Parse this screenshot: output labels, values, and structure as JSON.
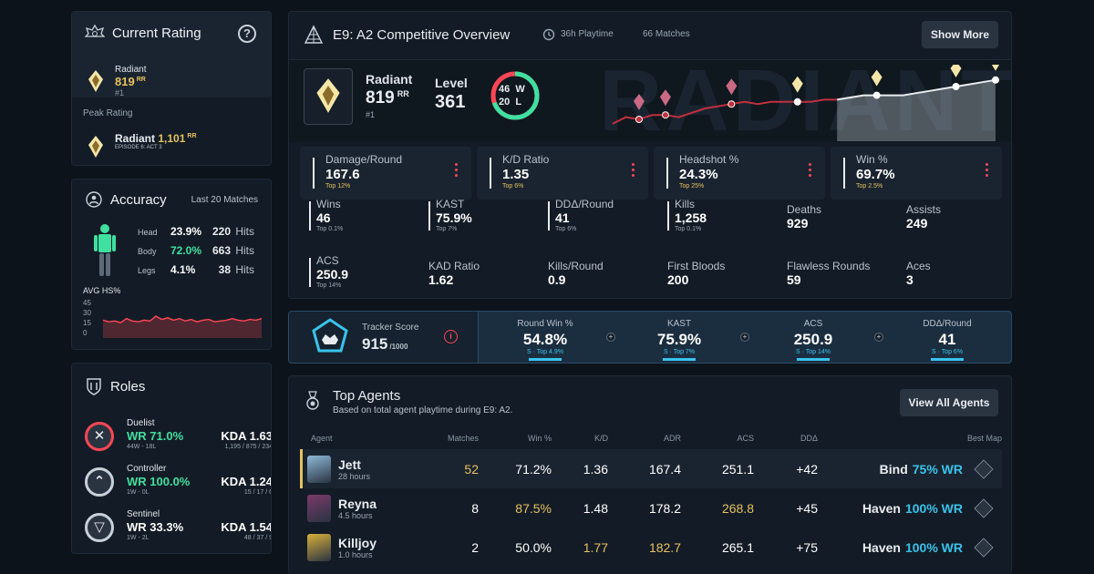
{
  "rating": {
    "title": "Current Rating",
    "rank": "Radiant",
    "rr": "819",
    "rr_unit": "RR",
    "position": "#1",
    "peak_label": "Peak Rating",
    "peak_rank": "Radiant",
    "peak_rr": "1,101",
    "peak_rr_unit": "RR",
    "peak_episode": "EPISODE 6: ACT 3"
  },
  "accuracy": {
    "title": "Accuracy",
    "period": "Last 20 Matches",
    "rows": [
      {
        "label": "Head",
        "pct": "23.9%",
        "hits": "220",
        "hits_label": "Hits"
      },
      {
        "label": "Body",
        "pct": "72.0%",
        "hits": "663",
        "hits_label": "Hits"
      },
      {
        "label": "Legs",
        "pct": "4.1%",
        "hits": "38",
        "hits_label": "Hits"
      }
    ],
    "avg_label": "AVG HS%",
    "y_ticks": [
      "45",
      "30",
      "15",
      "0"
    ],
    "hs_series": [
      22,
      20,
      21,
      19,
      24,
      21,
      20,
      22,
      21,
      27,
      23,
      25,
      22,
      24,
      21,
      23,
      20,
      22,
      23,
      20,
      21,
      22,
      24,
      22,
      21,
      23,
      22,
      24
    ]
  },
  "roles": {
    "title": "Roles",
    "items": [
      {
        "name": "Duelist",
        "wr": "WR 71.0%",
        "record": "44W - 18L",
        "kda": "KDA 1.63",
        "kda_detail": "1,195 / 875 / 234"
      },
      {
        "name": "Controller",
        "wr": "WR 100.0%",
        "record": "1W - 0L",
        "kda": "KDA 1.24",
        "kda_detail": "15 / 17 / 6"
      },
      {
        "name": "Sentinel",
        "wr": "WR 33.3%",
        "record": "1W - 2L",
        "kda": "KDA 1.54",
        "kda_detail": "48 / 37 / 9"
      }
    ]
  },
  "overview": {
    "title": "E9: A2 Competitive Overview",
    "playtime": "36h Playtime",
    "matches": "66 Matches",
    "show_more": "Show More",
    "rank": "Radiant",
    "rr": "819",
    "rr_unit": "RR",
    "position": "#1",
    "level_label": "Level",
    "level": "361",
    "wins": "46",
    "wins_label": "W",
    "losses": "20",
    "losses_label": "L",
    "bg_text": "RADIANT",
    "rr_history": [
      28,
      31,
      30,
      32,
      32,
      31,
      33,
      35,
      36,
      37,
      38,
      37,
      38,
      38,
      38,
      38,
      39,
      39,
      40,
      41,
      41,
      41,
      41,
      42,
      43,
      44,
      45,
      46,
      47,
      48
    ]
  },
  "main_stats": [
    {
      "label": "Damage/Round",
      "value": "167.6",
      "sub": "Top 12%"
    },
    {
      "label": "K/D Ratio",
      "value": "1.35",
      "sub": "Top 6%"
    },
    {
      "label": "Headshot %",
      "value": "24.3%",
      "sub": "Top 25%"
    },
    {
      "label": "Win %",
      "value": "69.7%",
      "sub": "Top 2.5%"
    }
  ],
  "mini_stats": [
    {
      "label": "Wins",
      "value": "46",
      "sub": "Top 0.1%"
    },
    {
      "label": "KAST",
      "value": "75.9%",
      "sub": "Top 7%"
    },
    {
      "label": "DDΔ/Round",
      "value": "41",
      "sub": "Top 6%"
    },
    {
      "label": "Kills",
      "value": "1,258",
      "sub": "Top 0.1%"
    },
    {
      "label": "Deaths",
      "value": "929"
    },
    {
      "label": "Assists",
      "value": "249"
    },
    {
      "label": "ACS",
      "value": "250.9",
      "sub": "Top 14%"
    },
    {
      "label": "KAD Ratio",
      "value": "1.62"
    },
    {
      "label": "Kills/Round",
      "value": "0.9"
    },
    {
      "label": "First Bloods",
      "value": "200"
    },
    {
      "label": "Flawless Rounds",
      "value": "59"
    },
    {
      "label": "Aces",
      "value": "3"
    }
  ],
  "tracker": {
    "label": "Tracker Score",
    "score": "915",
    "max": "/1000",
    "cells": [
      {
        "label": "Round Win %",
        "value": "54.8%",
        "sub": "S · Top 4.9%"
      },
      {
        "label": "KAST",
        "value": "75.9%",
        "sub": "S · Top 7%"
      },
      {
        "label": "ACS",
        "value": "250.9",
        "sub": "S · Top 14%"
      },
      {
        "label": "DDΔ/Round",
        "value": "41",
        "sub": "S · Top 6%"
      }
    ]
  },
  "agents": {
    "title": "Top Agents",
    "subtitle": "Based on total agent playtime during E9: A2.",
    "view_all": "View All Agents",
    "headers": [
      "Agent",
      "Matches",
      "Win %",
      "K/D",
      "ADR",
      "ACS",
      "DDΔ",
      "Best Map"
    ],
    "rows": [
      {
        "name": "Jett",
        "hours": "28 hours",
        "matches": "52",
        "win": "71.2%",
        "kd": "1.36",
        "adr": "167.4",
        "acs": "251.1",
        "dd": "+42",
        "map": "Bind",
        "map_wr": "75% WR"
      },
      {
        "name": "Reyna",
        "hours": "4.5 hours",
        "matches": "8",
        "win": "87.5%",
        "kd": "1.48",
        "adr": "178.2",
        "acs": "268.8",
        "dd": "+45",
        "map": "Haven",
        "map_wr": "100% WR"
      },
      {
        "name": "Killjoy",
        "hours": "1.0 hours",
        "matches": "2",
        "win": "50.0%",
        "kd": "1.77",
        "adr": "182.7",
        "acs": "265.1",
        "dd": "+75",
        "map": "Haven",
        "map_wr": "100% WR"
      }
    ]
  }
}
